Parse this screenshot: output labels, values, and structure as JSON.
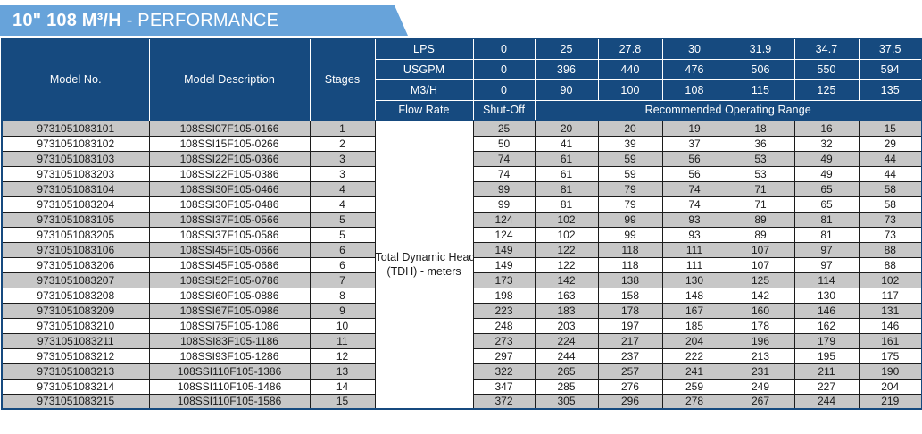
{
  "banner": {
    "title_bold": "10\" 108 M³/H",
    "title_regular": " - PERFORMANCE"
  },
  "colors": {
    "banner_blue": "#67A3DA",
    "header_navy": "#164A7F",
    "row_gray": "#C7C7C7",
    "row_white": "#FFFFFF"
  },
  "table": {
    "headers": {
      "model_no": "Model No.",
      "model_description": "Model Description",
      "stages": "Stages",
      "flow_rows": [
        {
          "label": "LPS",
          "values": [
            "0",
            "25",
            "27.8",
            "30",
            "31.9",
            "34.7",
            "37.5"
          ]
        },
        {
          "label": "USGPM",
          "values": [
            "0",
            "396",
            "440",
            "476",
            "506",
            "550",
            "594"
          ]
        },
        {
          "label": "M3/H",
          "values": [
            "0",
            "90",
            "100",
            "108",
            "115",
            "125",
            "135"
          ]
        }
      ],
      "flow_rate_label": "Flow Rate",
      "shut_off_label": "Shut-Off",
      "operating_range_label": "Recommended Operating Range"
    },
    "tdh_line1": "Total Dynamic Head",
    "tdh_line2": "(TDH) - meters",
    "rows": [
      {
        "model": "9731051083101",
        "description": "108SSI07F105-0166",
        "stages": "1",
        "values": [
          "25",
          "20",
          "20",
          "19",
          "18",
          "16",
          "15"
        ]
      },
      {
        "model": "9731051083102",
        "description": "108SSI15F105-0266",
        "stages": "2",
        "values": [
          "50",
          "41",
          "39",
          "37",
          "36",
          "32",
          "29"
        ]
      },
      {
        "model": "9731051083103",
        "description": "108SSI22F105-0366",
        "stages": "3",
        "values": [
          "74",
          "61",
          "59",
          "56",
          "53",
          "49",
          "44"
        ]
      },
      {
        "model": "9731051083203",
        "description": "108SSI22F105-0386",
        "stages": "3",
        "values": [
          "74",
          "61",
          "59",
          "56",
          "53",
          "49",
          "44"
        ]
      },
      {
        "model": "9731051083104",
        "description": "108SSI30F105-0466",
        "stages": "4",
        "values": [
          "99",
          "81",
          "79",
          "74",
          "71",
          "65",
          "58"
        ]
      },
      {
        "model": "9731051083204",
        "description": "108SSI30F105-0486",
        "stages": "4",
        "values": [
          "99",
          "81",
          "79",
          "74",
          "71",
          "65",
          "58"
        ]
      },
      {
        "model": "9731051083105",
        "description": "108SSI37F105-0566",
        "stages": "5",
        "values": [
          "124",
          "102",
          "99",
          "93",
          "89",
          "81",
          "73"
        ]
      },
      {
        "model": "9731051083205",
        "description": "108SSI37F105-0586",
        "stages": "5",
        "values": [
          "124",
          "102",
          "99",
          "93",
          "89",
          "81",
          "73"
        ]
      },
      {
        "model": "9731051083106",
        "description": "108SSI45F105-0666",
        "stages": "6",
        "values": [
          "149",
          "122",
          "118",
          "111",
          "107",
          "97",
          "88"
        ]
      },
      {
        "model": "9731051083206",
        "description": "108SSI45F105-0686",
        "stages": "6",
        "values": [
          "149",
          "122",
          "118",
          "111",
          "107",
          "97",
          "88"
        ]
      },
      {
        "model": "9731051083207",
        "description": "108SSI52F105-0786",
        "stages": "7",
        "values": [
          "173",
          "142",
          "138",
          "130",
          "125",
          "114",
          "102"
        ]
      },
      {
        "model": "9731051083208",
        "description": "108SSI60F105-0886",
        "stages": "8",
        "values": [
          "198",
          "163",
          "158",
          "148",
          "142",
          "130",
          "117"
        ]
      },
      {
        "model": "9731051083209",
        "description": "108SSI67F105-0986",
        "stages": "9",
        "values": [
          "223",
          "183",
          "178",
          "167",
          "160",
          "146",
          "131"
        ]
      },
      {
        "model": "9731051083210",
        "description": "108SSI75F105-1086",
        "stages": "10",
        "values": [
          "248",
          "203",
          "197",
          "185",
          "178",
          "162",
          "146"
        ]
      },
      {
        "model": "9731051083211",
        "description": "108SSI83F105-1186",
        "stages": "11",
        "values": [
          "273",
          "224",
          "217",
          "204",
          "196",
          "179",
          "161"
        ]
      },
      {
        "model": "9731051083212",
        "description": "108SSI93F105-1286",
        "stages": "12",
        "values": [
          "297",
          "244",
          "237",
          "222",
          "213",
          "195",
          "175"
        ]
      },
      {
        "model": "9731051083213",
        "description": "108SSI110F105-1386",
        "stages": "13",
        "values": [
          "322",
          "265",
          "257",
          "241",
          "231",
          "211",
          "190"
        ]
      },
      {
        "model": "9731051083214",
        "description": "108SSI110F105-1486",
        "stages": "14",
        "values": [
          "347",
          "285",
          "276",
          "259",
          "249",
          "227",
          "204"
        ]
      },
      {
        "model": "9731051083215",
        "description": "108SSI110F105-1586",
        "stages": "15",
        "values": [
          "372",
          "305",
          "296",
          "278",
          "267",
          "244",
          "219"
        ]
      }
    ]
  }
}
